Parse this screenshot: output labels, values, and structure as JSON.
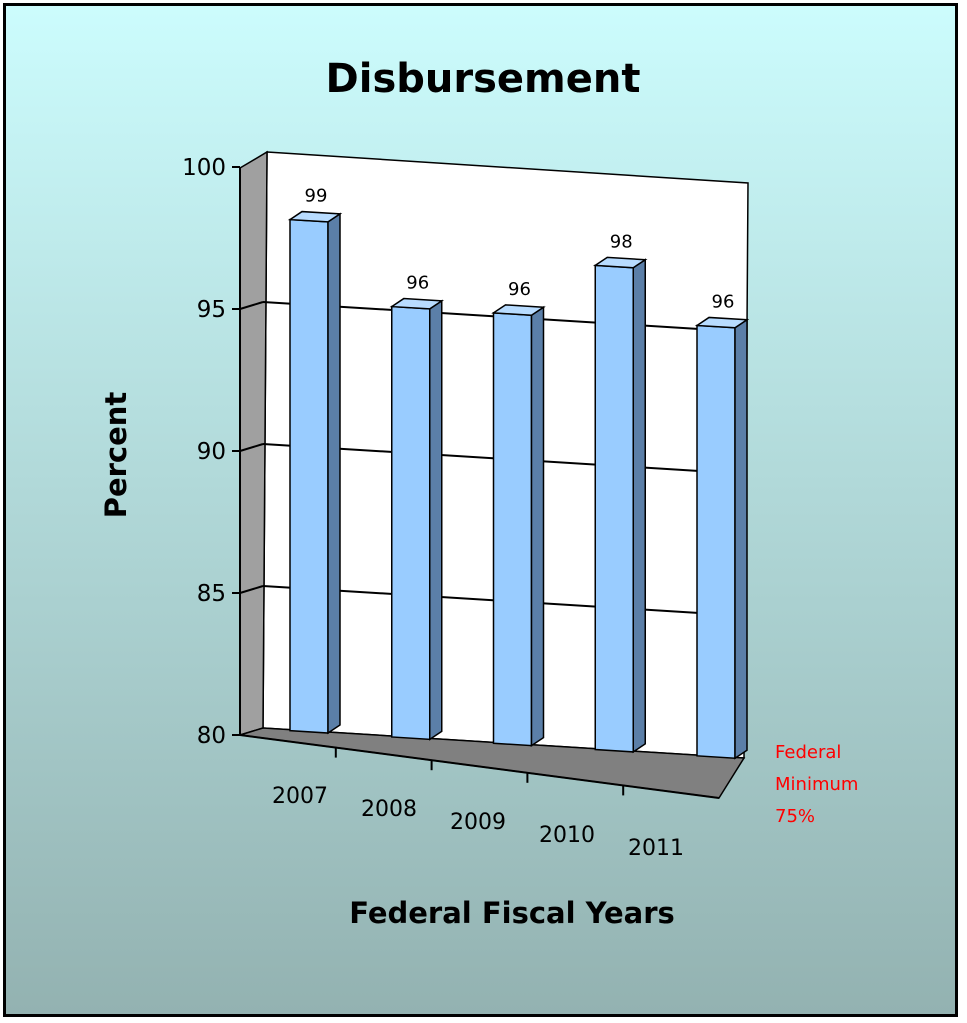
{
  "chart_data": {
    "type": "bar",
    "title": "Disbursement",
    "xlabel": "Federal Fiscal Years",
    "ylabel": "Percent",
    "categories": [
      "2007",
      "2008",
      "2009",
      "2010",
      "2011"
    ],
    "values": [
      99,
      96,
      96,
      98,
      96
    ],
    "ylim": [
      80,
      100
    ],
    "yticks": [
      "80",
      "85",
      "90",
      "95",
      "100"
    ],
    "grid": true,
    "style": "3d-column",
    "bar_color": "#99ccff",
    "note_color": "#ff0000"
  },
  "annotation": {
    "line1": "Federal",
    "line2": "Minimum",
    "line3": "75%"
  }
}
